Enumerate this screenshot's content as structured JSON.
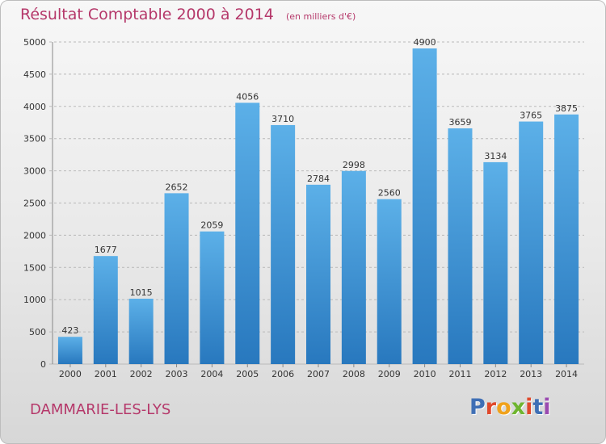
{
  "header": {
    "title": "Résultat Comptable 2000 à 2014",
    "subtitle": "(en milliers d'€)"
  },
  "footer": {
    "city": "DAMMARIE-LES-LYS",
    "logo_text": "Proxiti"
  },
  "colors": {
    "title": "#b5386a",
    "bar_light": "#5aaee6",
    "bar_dark": "#2a7fc3",
    "grid": "#bbbbbb"
  },
  "chart_data": {
    "type": "bar",
    "title": "Résultat Comptable 2000 à 2014",
    "subtitle": "(en milliers d'€)",
    "categories": [
      "2000",
      "2001",
      "2002",
      "2003",
      "2004",
      "2005",
      "2006",
      "2007",
      "2008",
      "2009",
      "2010",
      "2011",
      "2012",
      "2013",
      "2014"
    ],
    "values": [
      423,
      1677,
      1015,
      2652,
      2059,
      4056,
      3710,
      2784,
      2998,
      2560,
      4900,
      3659,
      3134,
      3765,
      3875
    ],
    "yticks": [
      "0",
      "500",
      "1000",
      "1500",
      "2000",
      "2500",
      "3000",
      "3500",
      "4000",
      "4500",
      "5000"
    ],
    "ylim": [
      0,
      5000
    ],
    "xlabel": "",
    "ylabel": "",
    "grid": true,
    "legend": "none"
  }
}
